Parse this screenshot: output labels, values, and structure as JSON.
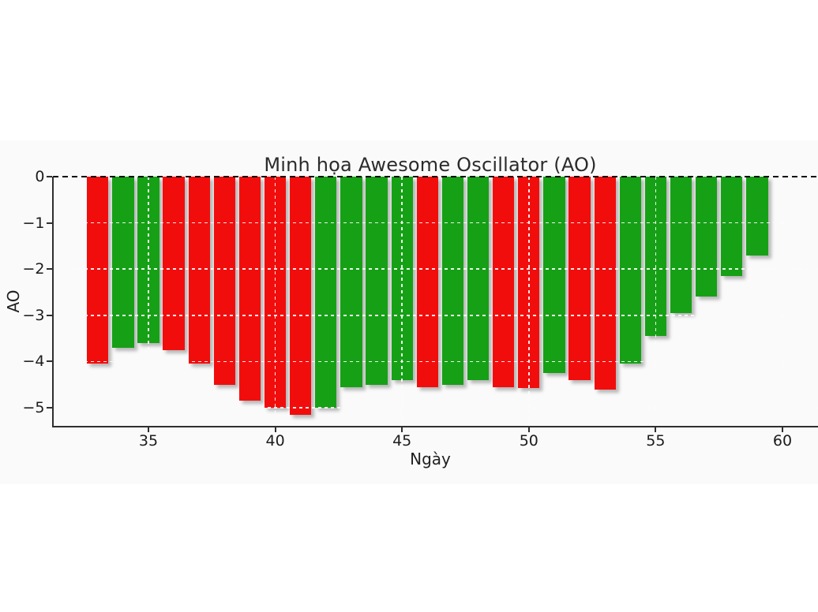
{
  "figure": {
    "title": "Minh họa Awesome Oscillator (AO)",
    "xlabel": "Ngày",
    "ylabel": "AO"
  },
  "chart_data": {
    "type": "bar",
    "title": "Minh họa Awesome Oscillator (AO)",
    "xlabel": "Ngày",
    "ylabel": "AO",
    "x": [
      33,
      34,
      35,
      36,
      37,
      38,
      39,
      40,
      41,
      42,
      43,
      44,
      45,
      46,
      47,
      48,
      49,
      50,
      51,
      52,
      53,
      54,
      55,
      56,
      57,
      58,
      59
    ],
    "values": [
      -4.05,
      -3.7,
      -3.6,
      -3.75,
      -4.05,
      -4.5,
      -4.85,
      -5.0,
      -5.15,
      -5.0,
      -4.55,
      -4.5,
      -4.4,
      -4.55,
      -4.5,
      -4.4,
      -4.55,
      -4.58,
      -4.25,
      -4.4,
      -4.6,
      -4.05,
      -3.45,
      -2.95,
      -2.6,
      -2.15,
      -1.7
    ],
    "directions": [
      "down",
      "up",
      "up",
      "down",
      "down",
      "down",
      "down",
      "down",
      "down",
      "up",
      "up",
      "up",
      "up",
      "down",
      "up",
      "up",
      "down",
      "down",
      "up",
      "down",
      "down",
      "up",
      "up",
      "up",
      "up",
      "up",
      "up"
    ],
    "colors": {
      "up": "#16a016",
      "down": "#f20d0d"
    },
    "xticks": [
      35,
      40,
      45,
      50,
      55,
      60
    ],
    "xtick_labels": [
      "35",
      "40",
      "45",
      "50",
      "55",
      "60"
    ],
    "yticks": [
      0,
      -1,
      -2,
      -3,
      -4,
      -5
    ],
    "ytick_labels": [
      "0",
      "−1",
      "−2",
      "−3",
      "−4",
      "−5"
    ],
    "xlim": [
      31.2,
      61.4
    ],
    "ylim": [
      -5.4,
      0.0
    ],
    "grid": true,
    "grid_style": "dashed",
    "zero_line": {
      "value": 0,
      "color": "#000000",
      "style": "dashed"
    },
    "bar_width_units": 0.85,
    "legend": null
  }
}
